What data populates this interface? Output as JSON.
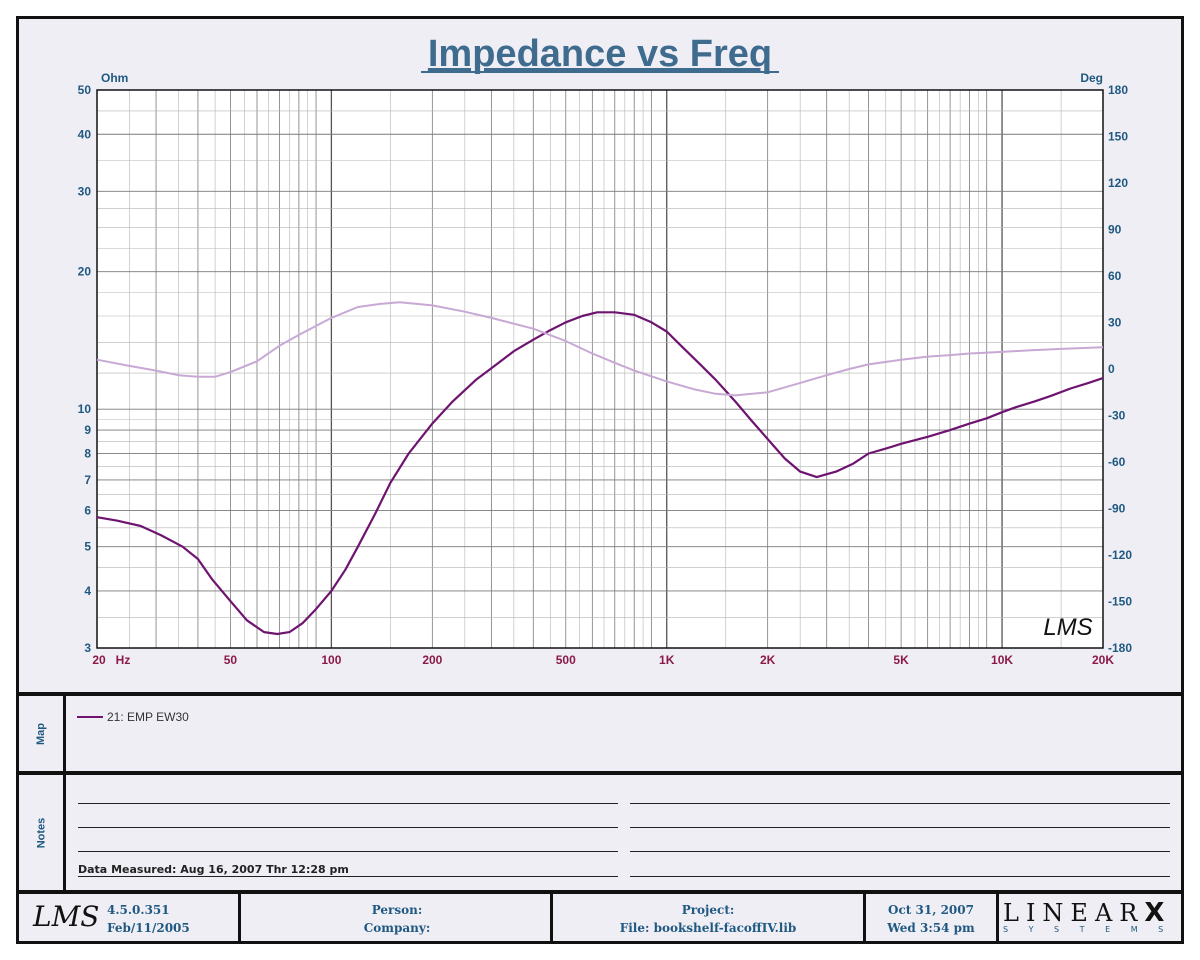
{
  "chart_data": {
    "type": "line",
    "title": "Impedance vs Freq",
    "y_left_label": "Ohm",
    "y_right_label": "Deg",
    "x_scale": "log",
    "xlim": [
      20,
      20000
    ],
    "y_left_scale": "log",
    "y_left_lim": [
      3,
      50
    ],
    "y_right_lim": [
      -180,
      180
    ],
    "x_ticks": [
      "20",
      "Hz",
      "50",
      "100",
      "200",
      "500",
      "1K",
      "2K",
      "5K",
      "10K",
      "20K"
    ],
    "y_left_ticks": [
      "50",
      "40",
      "30",
      "20",
      "10",
      "9",
      "8",
      "7",
      "6",
      "5",
      "4",
      "3"
    ],
    "y_right_ticks": [
      "180",
      "150",
      "120",
      "90",
      "60",
      "30",
      "0",
      "-30",
      "-60",
      "-90",
      "-120",
      "-150",
      "-180"
    ],
    "grid": true,
    "series": [
      {
        "name": "21: EMP EW30",
        "axis": "left",
        "color": "#6e1470",
        "points": [
          [
            20,
            5.8
          ],
          [
            23,
            5.7
          ],
          [
            27,
            5.55
          ],
          [
            31,
            5.3
          ],
          [
            36,
            5.0
          ],
          [
            40,
            4.7
          ],
          [
            44,
            4.25
          ],
          [
            50,
            3.8
          ],
          [
            56,
            3.45
          ],
          [
            63,
            3.25
          ],
          [
            69,
            3.22
          ],
          [
            75,
            3.25
          ],
          [
            82,
            3.4
          ],
          [
            90,
            3.65
          ],
          [
            100,
            4.0
          ],
          [
            110,
            4.45
          ],
          [
            120,
            5.0
          ],
          [
            135,
            5.9
          ],
          [
            150,
            6.9
          ],
          [
            170,
            8.0
          ],
          [
            200,
            9.3
          ],
          [
            230,
            10.4
          ],
          [
            270,
            11.6
          ],
          [
            300,
            12.3
          ],
          [
            350,
            13.4
          ],
          [
            400,
            14.2
          ],
          [
            450,
            14.9
          ],
          [
            500,
            15.5
          ],
          [
            560,
            16.0
          ],
          [
            620,
            16.3
          ],
          [
            700,
            16.3
          ],
          [
            800,
            16.1
          ],
          [
            900,
            15.5
          ],
          [
            1000,
            14.8
          ],
          [
            1100,
            13.8
          ],
          [
            1250,
            12.6
          ],
          [
            1400,
            11.6
          ],
          [
            1600,
            10.4
          ],
          [
            1800,
            9.4
          ],
          [
            2000,
            8.6
          ],
          [
            2250,
            7.8
          ],
          [
            2500,
            7.3
          ],
          [
            2800,
            7.1
          ],
          [
            3200,
            7.3
          ],
          [
            3600,
            7.6
          ],
          [
            4000,
            8.0
          ],
          [
            4500,
            8.2
          ],
          [
            5000,
            8.4
          ],
          [
            6000,
            8.7
          ],
          [
            7000,
            9.0
          ],
          [
            8000,
            9.3
          ],
          [
            9000,
            9.55
          ],
          [
            10000,
            9.85
          ],
          [
            11000,
            10.1
          ],
          [
            12500,
            10.4
          ],
          [
            14000,
            10.7
          ],
          [
            16000,
            11.1
          ],
          [
            18000,
            11.4
          ],
          [
            20000,
            11.7
          ]
        ]
      },
      {
        "name": "",
        "axis": "right",
        "color": "#c8a8d4",
        "points": [
          [
            20,
            6
          ],
          [
            25,
            2
          ],
          [
            30,
            -1
          ],
          [
            35,
            -4
          ],
          [
            40,
            -5
          ],
          [
            45,
            -5
          ],
          [
            50,
            -2
          ],
          [
            60,
            5
          ],
          [
            70,
            15
          ],
          [
            80,
            22
          ],
          [
            100,
            33
          ],
          [
            120,
            40
          ],
          [
            140,
            42
          ],
          [
            160,
            43
          ],
          [
            200,
            41
          ],
          [
            250,
            37
          ],
          [
            300,
            33
          ],
          [
            400,
            26
          ],
          [
            500,
            18
          ],
          [
            600,
            10
          ],
          [
            700,
            4
          ],
          [
            800,
            -1
          ],
          [
            1000,
            -8
          ],
          [
            1200,
            -13
          ],
          [
            1400,
            -16
          ],
          [
            1600,
            -17
          ],
          [
            1800,
            -16
          ],
          [
            2000,
            -15
          ],
          [
            2500,
            -9
          ],
          [
            3000,
            -4
          ],
          [
            3500,
            0
          ],
          [
            4000,
            3
          ],
          [
            5000,
            6
          ],
          [
            6000,
            8
          ],
          [
            7000,
            9
          ],
          [
            8000,
            10
          ],
          [
            10000,
            11
          ],
          [
            12000,
            12
          ],
          [
            15000,
            13
          ],
          [
            20000,
            14
          ]
        ]
      }
    ]
  },
  "header": {
    "title": "Impedance vs Freq"
  },
  "logo_small": "LMS",
  "map": {
    "label": "Map",
    "legend": [
      {
        "text": "21: EMP EW30",
        "color": "#6e1470"
      }
    ]
  },
  "notes": {
    "label": "Notes",
    "measured": "Data Measured: Aug 16, 2007  Thr 12:28 pm"
  },
  "footer": {
    "logo": "LMS",
    "version": "4.5.0.351",
    "version_date": "Feb/11/2005",
    "person": "Person:",
    "company": "Company:",
    "project": "Project:",
    "file": "File: bookshelf-facoffIV.lib",
    "date": "Oct 31, 2007",
    "time": "Wed  3:54 pm",
    "brand": "LINEAR",
    "brand_x": "X",
    "brand_sub": "S Y S T E M S"
  }
}
